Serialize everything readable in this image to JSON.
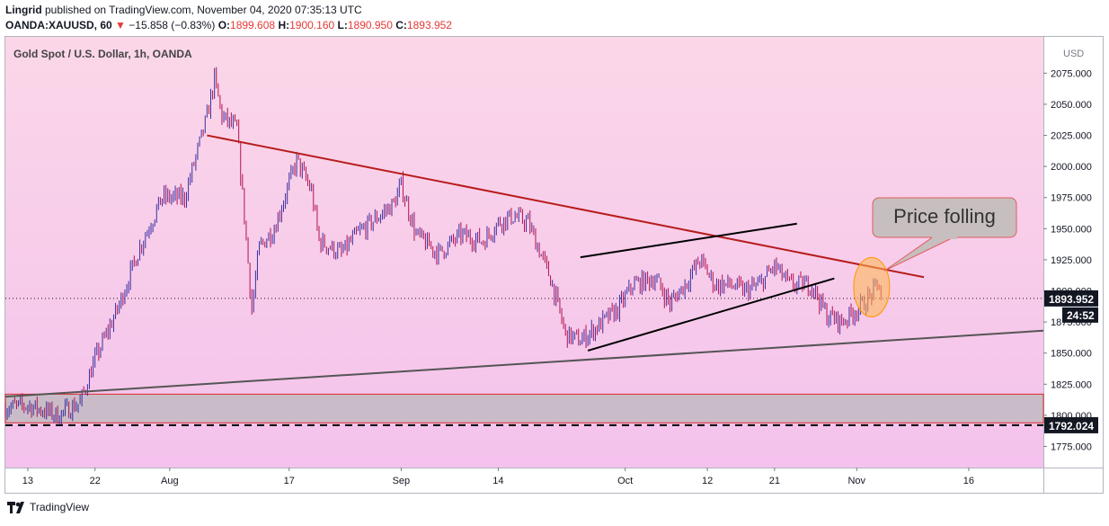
{
  "header": {
    "author": "Lingrid",
    "published_text": " published on TradingView.com, November 04, 2020 07:35:13 UTC",
    "symbol": "OANDA:XAUUSD, 60",
    "change_icon": "down-triangle-icon",
    "change": "−15.858 (−0.83%)",
    "o_label": "O:",
    "o_value": "1899.608",
    "h_label": "H:",
    "h_value": "1900.160",
    "l_label": "L:",
    "l_value": "1890.950",
    "c_label": "C:",
    "c_value": "1893.952"
  },
  "footer": {
    "brand": "TradingView",
    "logo_icon": "tradingview-logo-icon"
  },
  "colors": {
    "bg_top": "#fbd7e8",
    "bg_bottom": "#f4c2ec",
    "candle_up": "#3b2fa0",
    "candle_down": "#b3124f",
    "resistance_line": "#b71c1c",
    "channel_line": "#000000",
    "support_line": "#555555",
    "zone_fill": "#c9bcc8",
    "zone_border": "#d62b2b",
    "callout_fill": "#c7bfbf",
    "callout_border": "#e25b5b",
    "highlight": "#ffb74d",
    "price_tag_bg": "#131722",
    "price_tag_text": "#ffffff"
  },
  "chart_data": {
    "type": "candlestick",
    "title": "Gold Spot / U.S. Dollar, 1h, OANDA",
    "currency": "USD",
    "y_range": [
      1758,
      2102
    ],
    "y_ticks": [
      "1775.000",
      "1800.000",
      "1825.000",
      "1850.000",
      "1875.000",
      "1900.000",
      "1925.000",
      "1950.000",
      "1975.000",
      "2000.000",
      "2025.000",
      "2050.000",
      "2075.000",
      "2..."
    ],
    "x_ticks": [
      "13",
      "22",
      "Aug",
      "17",
      "Sep",
      "14",
      "Oct",
      "12",
      "21",
      "Nov",
      "16"
    ],
    "x_tick_dates": [
      "2020-07-13",
      "2020-07-22",
      "2020-08-01",
      "2020-08-17",
      "2020-09-01",
      "2020-09-14",
      "2020-10-01",
      "2020-10-12",
      "2020-10-21",
      "2020-11-01",
      "2020-11-16"
    ],
    "x_range": [
      "2020-07-10",
      "2020-11-26"
    ],
    "price_path": [
      [
        "2020-07-10",
        1806
      ],
      [
        "2020-07-13",
        1808
      ],
      [
        "2020-07-17",
        1800
      ],
      [
        "2020-07-20",
        1810
      ],
      [
        "2020-07-22",
        1845
      ],
      [
        "2020-07-25",
        1885
      ],
      [
        "2020-07-28",
        1935
      ],
      [
        "2020-07-31",
        1975
      ],
      [
        "2020-08-03",
        1975
      ],
      [
        "2020-08-06",
        2040
      ],
      [
        "2020-08-07",
        2070
      ],
      [
        "2020-08-08",
        2040
      ],
      [
        "2020-08-10",
        2030
      ],
      [
        "2020-08-11",
        1960
      ],
      [
        "2020-08-12",
        1885
      ],
      [
        "2020-08-13",
        1935
      ],
      [
        "2020-08-15",
        1950
      ],
      [
        "2020-08-18",
        2005
      ],
      [
        "2020-08-20",
        1980
      ],
      [
        "2020-08-21",
        1940
      ],
      [
        "2020-08-24",
        1930
      ],
      [
        "2020-08-26",
        1945
      ],
      [
        "2020-08-28",
        1955
      ],
      [
        "2020-08-31",
        1970
      ],
      [
        "2020-09-01",
        1985
      ],
      [
        "2020-09-03",
        1945
      ],
      [
        "2020-09-06",
        1930
      ],
      [
        "2020-09-09",
        1945
      ],
      [
        "2020-09-12",
        1940
      ],
      [
        "2020-09-14",
        1955
      ],
      [
        "2020-09-16",
        1960
      ],
      [
        "2020-09-18",
        1955
      ],
      [
        "2020-09-21",
        1910
      ],
      [
        "2020-09-23",
        1865
      ],
      [
        "2020-09-25",
        1860
      ],
      [
        "2020-09-28",
        1875
      ],
      [
        "2020-09-30",
        1885
      ],
      [
        "2020-10-02",
        1905
      ],
      [
        "2020-10-05",
        1910
      ],
      [
        "2020-10-07",
        1890
      ],
      [
        "2020-10-09",
        1905
      ],
      [
        "2020-10-11",
        1925
      ],
      [
        "2020-10-13",
        1905
      ],
      [
        "2020-10-15",
        1905
      ],
      [
        "2020-10-17",
        1900
      ],
      [
        "2020-10-19",
        1905
      ],
      [
        "2020-10-21",
        1920
      ],
      [
        "2020-10-23",
        1905
      ],
      [
        "2020-10-26",
        1905
      ],
      [
        "2020-10-28",
        1880
      ],
      [
        "2020-10-30",
        1875
      ],
      [
        "2020-11-02",
        1890
      ],
      [
        "2020-11-04",
        1905
      ],
      [
        "2020-11-04T07:00",
        1894
      ]
    ],
    "trendlines": [
      {
        "name": "Resistance",
        "points": [
          [
            "2020-08-06",
            2025
          ],
          [
            "2020-11-10",
            1911
          ]
        ]
      },
      {
        "name": "Channel upper",
        "points": [
          [
            "2020-09-25",
            1927
          ],
          [
            "2020-10-24",
            1954
          ]
        ]
      },
      {
        "name": "Channel lower",
        "points": [
          [
            "2020-09-26",
            1852
          ],
          [
            "2020-10-29",
            1910
          ]
        ]
      },
      {
        "name": "Support",
        "points": [
          [
            "2020-07-10",
            1815
          ],
          [
            "2020-11-26",
            1868
          ]
        ]
      }
    ],
    "zone": {
      "from": 1794,
      "to": 1817
    },
    "dashed_level": 1792.024,
    "price_tags": [
      {
        "label": "1893.952",
        "value": 1893.952,
        "countdown": "24:52"
      },
      {
        "label": "1792.024",
        "value": 1792.024
      }
    ],
    "annotation": {
      "text": "Price folling",
      "target_date": "2020-11-03",
      "target_value": 1903
    }
  }
}
